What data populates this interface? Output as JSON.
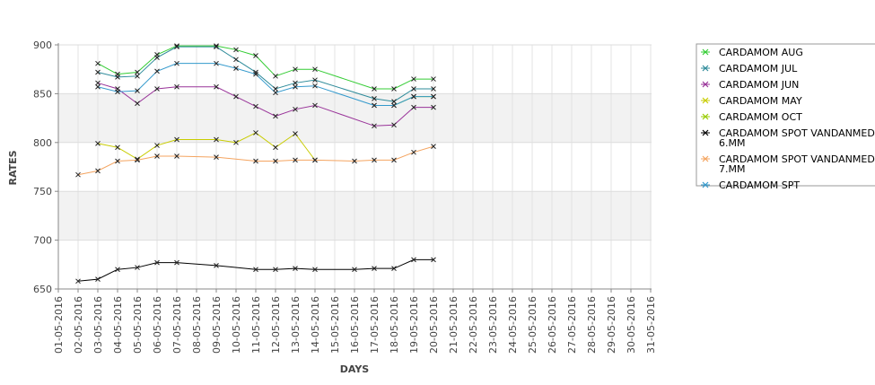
{
  "chart_data": {
    "type": "line",
    "xlabel": "DAYS",
    "ylabel": "RATES",
    "ylim": [
      650,
      900
    ],
    "y_ticks": [
      650,
      700,
      750,
      800,
      850,
      900
    ],
    "x_ticks": [
      "01-05-2016",
      "02-05-2016",
      "03-05-2016",
      "04-05-2016",
      "05-05-2016",
      "06-05-2016",
      "07-05-2016",
      "08-05-2016",
      "09-05-2016",
      "10-05-2016",
      "11-05-2016",
      "12-05-2016",
      "13-05-2016",
      "14-05-2016",
      "15-05-2016",
      "16-05-2016",
      "17-05-2016",
      "18-05-2016",
      "19-05-2016",
      "20-05-2016",
      "21-05-2016",
      "22-05-2016",
      "23-05-2016",
      "24-05-2016",
      "25-05-2016",
      "26-05-2016",
      "27-05-2016",
      "28-05-2016",
      "29-05-2016",
      "30-05-2016",
      "31-05-2016"
    ],
    "legend_position": "right",
    "grid": true,
    "series": [
      {
        "name": "CARDAMOM AUG",
        "color": "#33cc33",
        "x": [
          "03-05-2016",
          "04-05-2016",
          "05-05-2016",
          "06-05-2016",
          "07-05-2016",
          "09-05-2016",
          "10-05-2016",
          "11-05-2016",
          "12-05-2016",
          "13-05-2016",
          "14-05-2016",
          "17-05-2016",
          "18-05-2016",
          "19-05-2016",
          "20-05-2016"
        ],
        "values": [
          881,
          870,
          872,
          890,
          899,
          899,
          895,
          889,
          868,
          875,
          875,
          855,
          855,
          865,
          865
        ]
      },
      {
        "name": "CARDAMOM JUL",
        "color": "#2e8b9a",
        "x": [
          "03-05-2016",
          "04-05-2016",
          "05-05-2016",
          "06-05-2016",
          "07-05-2016",
          "09-05-2016",
          "10-05-2016",
          "11-05-2016",
          "12-05-2016",
          "13-05-2016",
          "14-05-2016",
          "17-05-2016",
          "18-05-2016",
          "19-05-2016",
          "20-05-2016"
        ],
        "values": [
          872,
          867,
          868,
          887,
          898,
          898,
          885,
          872,
          855,
          861,
          864,
          845,
          842,
          855,
          855
        ]
      },
      {
        "name": "CARDAMOM JUN",
        "color": "#993399",
        "x": [
          "03-05-2016",
          "04-05-2016",
          "05-05-2016",
          "06-05-2016",
          "07-05-2016",
          "09-05-2016",
          "10-05-2016",
          "11-05-2016",
          "12-05-2016",
          "13-05-2016",
          "14-05-2016",
          "17-05-2016",
          "18-05-2016",
          "19-05-2016",
          "20-05-2016"
        ],
        "values": [
          861,
          855,
          840,
          855,
          857,
          857,
          847,
          837,
          827,
          834,
          838,
          817,
          818,
          836,
          836
        ]
      },
      {
        "name": "CARDAMOM MAY",
        "color": "#c8cc00",
        "x": [
          "03-05-2016",
          "04-05-2016",
          "05-05-2016",
          "06-05-2016",
          "07-05-2016",
          "09-05-2016",
          "10-05-2016",
          "11-05-2016",
          "12-05-2016",
          "13-05-2016",
          "14-05-2016"
        ],
        "values": [
          799,
          795,
          783,
          797,
          803,
          803,
          800,
          810,
          795,
          809,
          782
        ]
      },
      {
        "name": "CARDAMOM OCT",
        "color": "#99cc00",
        "x": [
          "17-05-2016",
          "18-05-2016",
          "19-05-2016",
          "20-05-2016"
        ],
        "values": [
          838,
          838,
          847,
          847
        ]
      },
      {
        "name": "CARDAMOM SPOT VANDANMEDU 6.MM",
        "color": "#000000",
        "x": [
          "02-05-2016",
          "03-05-2016",
          "04-05-2016",
          "05-05-2016",
          "06-05-2016",
          "07-05-2016",
          "09-05-2016",
          "11-05-2016",
          "12-05-2016",
          "13-05-2016",
          "14-05-2016",
          "16-05-2016",
          "17-05-2016",
          "18-05-2016",
          "19-05-2016",
          "20-05-2016"
        ],
        "values": [
          658,
          660,
          670,
          672,
          677,
          677,
          674,
          670,
          670,
          671,
          670,
          670,
          671,
          671,
          680,
          680
        ]
      },
      {
        "name": "CARDAMOM SPOT VANDANMEDU 7.MM",
        "color": "#f4a460",
        "x": [
          "02-05-2016",
          "03-05-2016",
          "04-05-2016",
          "05-05-2016",
          "06-05-2016",
          "07-05-2016",
          "09-05-2016",
          "11-05-2016",
          "12-05-2016",
          "13-05-2016",
          "14-05-2016",
          "16-05-2016",
          "17-05-2016",
          "18-05-2016",
          "19-05-2016",
          "20-05-2016"
        ],
        "values": [
          767,
          771,
          781,
          782,
          786,
          786,
          785,
          781,
          781,
          782,
          782,
          781,
          782,
          782,
          790,
          796
        ]
      },
      {
        "name": "CARDAMOM SPT",
        "color": "#3399cc",
        "x": [
          "03-05-2016",
          "04-05-2016",
          "05-05-2016",
          "06-05-2016",
          "07-05-2016",
          "09-05-2016",
          "10-05-2016",
          "11-05-2016",
          "12-05-2016",
          "13-05-2016",
          "14-05-2016",
          "17-05-2016",
          "18-05-2016",
          "19-05-2016",
          "20-05-2016"
        ],
        "values": [
          857,
          852,
          853,
          873,
          881,
          881,
          876,
          870,
          851,
          857,
          858,
          838,
          838,
          847,
          847
        ]
      }
    ],
    "legend": [
      {
        "lines": [
          "CARDAMOM AUG"
        ]
      },
      {
        "lines": [
          "CARDAMOM JUL"
        ]
      },
      {
        "lines": [
          "CARDAMOM JUN"
        ]
      },
      {
        "lines": [
          "CARDAMOM MAY"
        ]
      },
      {
        "lines": [
          "CARDAMOM OCT"
        ]
      },
      {
        "lines": [
          "CARDAMOM SPOT VANDANMEDU",
          "6.MM"
        ]
      },
      {
        "lines": [
          "CARDAMOM SPOT VANDANMEDU",
          "7.MM"
        ]
      },
      {
        "lines": [
          "CARDAMOM SPT"
        ]
      }
    ]
  }
}
